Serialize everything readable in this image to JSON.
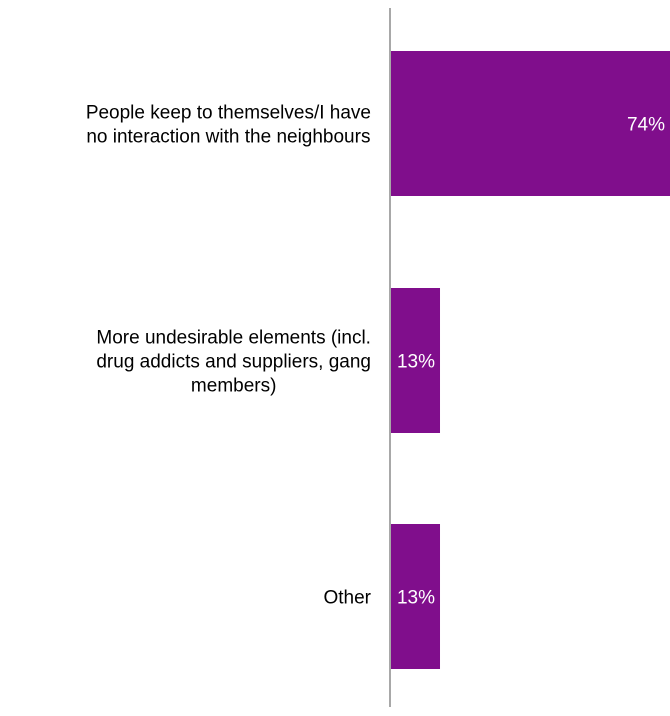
{
  "chart_data": {
    "type": "bar",
    "orientation": "horizontal",
    "categories": [
      "People keep to themselves/I have no interaction with the neighbours",
      "More undesirable elements (incl. drug addicts and suppliers, gang members)",
      "Other"
    ],
    "category_lines": [
      [
        "People keep to themselves/I have",
        "no interaction with the neighbours"
      ],
      [
        "More undesirable elements (incl.",
        "drug addicts and suppliers, gang",
        "members)"
      ],
      [
        "Other"
      ]
    ],
    "values": [
      74,
      13,
      13
    ],
    "value_labels": [
      "74%",
      "13%",
      "13%"
    ],
    "xlim": [
      0,
      74
    ],
    "title": "",
    "xlabel": "",
    "ylabel": "",
    "grid": false,
    "legend": "none",
    "bar_color": "#800e8c",
    "axis_color": "#8c8c8c",
    "label_color": "#000000",
    "value_label_color": "#ffffff"
  }
}
